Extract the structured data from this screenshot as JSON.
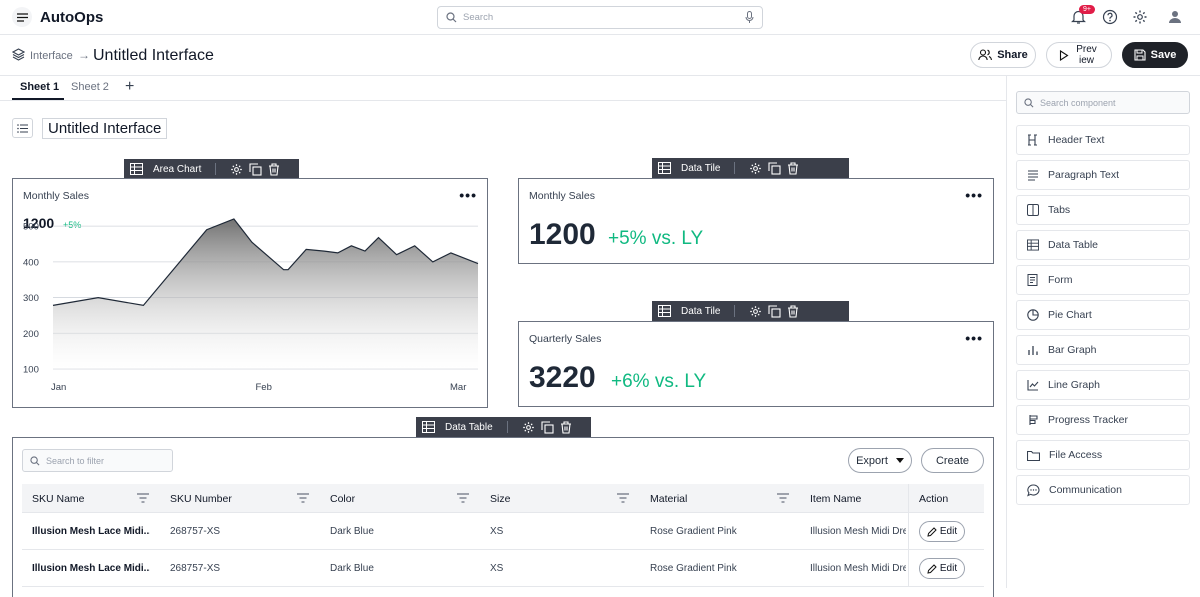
{
  "app": {
    "name": "AutoOps",
    "notification_count": "9+"
  },
  "search": {
    "placeholder": "Search"
  },
  "breadcrumb": {
    "parent": "Interface",
    "current": "Untitled Interface"
  },
  "actions": {
    "share": "Share",
    "preview": "Prev iew",
    "save": "Save"
  },
  "sheets": [
    {
      "label": "Sheet 1",
      "active": true
    },
    {
      "label": "Sheet 2",
      "active": false
    }
  ],
  "doc_title": "Untitled Interface",
  "widgets": {
    "area_chart": {
      "label": "Area Chart",
      "title": "Monthly Sales",
      "value": "1200",
      "delta": "+5%"
    },
    "tile1": {
      "label": "Data Tile",
      "title": "Monthly Sales",
      "value": "1200",
      "delta": "+5% vs. LY"
    },
    "tile2": {
      "label": "Data Tile",
      "title": "Quarterly Sales",
      "value": "3220",
      "delta": "+6% vs. LY"
    },
    "table": {
      "label": "Data Table"
    }
  },
  "chart_data": {
    "type": "area",
    "x": [
      0,
      0.5,
      1,
      1.7,
      2,
      2.2,
      2.55,
      2.6,
      2.8,
      3,
      3.15,
      3.3,
      3.45,
      3.6,
      3.8,
      4,
      4.2,
      4.4,
      4.7
    ],
    "y": [
      278,
      300,
      278,
      490,
      520,
      455,
      378,
      378,
      435,
      430,
      425,
      445,
      430,
      468,
      420,
      445,
      400,
      425,
      395
    ],
    "xtick_labels": [
      "Jan",
      "Feb",
      "Mar"
    ],
    "yticks": [
      100,
      200,
      300,
      400,
      500
    ],
    "ylim": [
      100,
      520
    ],
    "grid": true
  },
  "table": {
    "filter_placeholder": "Search to filter",
    "export_label": "Export",
    "create_label": "Create",
    "columns": [
      "SKU Name",
      "SKU Number",
      "Color",
      "Size",
      "Material",
      "Item Name",
      "Action"
    ],
    "rows": [
      [
        "Illusion Mesh Lace Midi...",
        "268757-XS",
        "Dark Blue",
        "XS",
        "Rose Gradient Pink",
        "Illusion Mesh Midi Dre"
      ],
      [
        "Illusion Mesh Lace Midi...",
        "268757-XS",
        "Dark Blue",
        "XS",
        "Rose Gradient Pink",
        "Illusion Mesh Midi Dre"
      ]
    ],
    "edit_label": "Edit"
  },
  "sidebar": {
    "search_placeholder": "Search component",
    "components": [
      {
        "label": "Header Text",
        "icon": "heading-icon"
      },
      {
        "label": "Paragraph Text",
        "icon": "paragraph-icon"
      },
      {
        "label": "Tabs",
        "icon": "tabs-icon"
      },
      {
        "label": "Data Table",
        "icon": "table-icon"
      },
      {
        "label": "Form",
        "icon": "form-icon"
      },
      {
        "label": "Pie Chart",
        "icon": "pie-chart-icon"
      },
      {
        "label": "Bar Graph",
        "icon": "bar-graph-icon"
      },
      {
        "label": "Line Graph",
        "icon": "line-graph-icon"
      },
      {
        "label": "Progress Tracker",
        "icon": "progress-icon"
      },
      {
        "label": "File Access",
        "icon": "folder-icon"
      },
      {
        "label": "Communication",
        "icon": "chat-icon"
      }
    ]
  }
}
